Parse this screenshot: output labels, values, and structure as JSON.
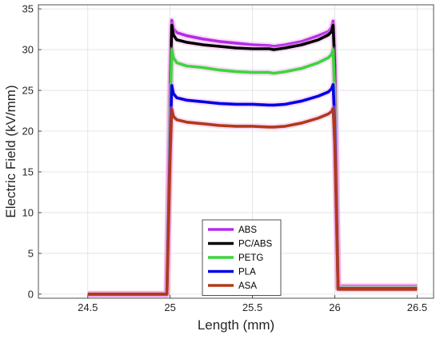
{
  "chart_data": {
    "type": "line",
    "title": "",
    "xlabel": "Length (mm)",
    "ylabel": "Electric Field (kV/mm)",
    "xlim": [
      24.2,
      26.6
    ],
    "ylim": [
      -0.5,
      35.5
    ],
    "xticks": [
      24.5,
      25,
      25.5,
      26,
      26.5
    ],
    "yticks": [
      0,
      5,
      10,
      15,
      20,
      25,
      30,
      35
    ],
    "xtick_labels": [
      "24.5",
      "25",
      "25.5",
      "26",
      "26.5"
    ],
    "ytick_labels": [
      "0",
      "5",
      "10",
      "15",
      "20",
      "25",
      "30",
      "35"
    ],
    "grid": true,
    "legend_position": "bottom-center",
    "x": [
      24.5,
      24.98,
      25.0,
      25.01,
      25.02,
      25.04,
      25.1,
      25.2,
      25.3,
      25.4,
      25.5,
      25.6,
      25.63,
      25.7,
      25.8,
      25.9,
      25.96,
      25.98,
      25.99,
      26.0,
      26.02,
      26.5
    ],
    "series": [
      {
        "name": "ABS",
        "color": "#b42be8",
        "values": [
          0.0,
          0.0,
          26.0,
          33.6,
          32.6,
          32.1,
          31.7,
          31.3,
          31.0,
          30.8,
          30.6,
          30.5,
          30.4,
          30.6,
          31.0,
          31.7,
          32.2,
          32.7,
          33.5,
          29.0,
          1.0,
          1.0
        ]
      },
      {
        "name": "PC/ABS",
        "color": "#000000",
        "values": [
          0.0,
          0.0,
          25.0,
          33.0,
          31.8,
          31.2,
          30.9,
          30.6,
          30.4,
          30.2,
          30.1,
          30.1,
          30.0,
          30.2,
          30.6,
          31.2,
          31.8,
          32.2,
          33.0,
          28.0,
          0.8,
          0.8
        ]
      },
      {
        "name": "PETG",
        "color": "#3bd63b",
        "values": [
          0.0,
          0.0,
          23.0,
          30.0,
          29.0,
          28.4,
          28.0,
          27.8,
          27.5,
          27.3,
          27.2,
          27.2,
          27.1,
          27.3,
          27.7,
          28.4,
          29.0,
          29.4,
          30.0,
          25.0,
          0.8,
          0.8
        ]
      },
      {
        "name": "PLA",
        "color": "#0000e6",
        "values": [
          0.0,
          0.0,
          19.0,
          25.6,
          24.6,
          24.1,
          23.8,
          23.6,
          23.4,
          23.3,
          23.3,
          23.2,
          23.2,
          23.3,
          23.7,
          24.3,
          24.8,
          25.2,
          25.7,
          21.0,
          0.7,
          0.7
        ]
      },
      {
        "name": "ASA",
        "color": "#b03a1a",
        "values": [
          0.0,
          0.0,
          17.0,
          22.7,
          21.8,
          21.4,
          21.1,
          20.9,
          20.7,
          20.6,
          20.6,
          20.5,
          20.5,
          20.6,
          21.0,
          21.6,
          22.1,
          22.4,
          22.8,
          18.5,
          0.6,
          0.6
        ]
      }
    ]
  }
}
